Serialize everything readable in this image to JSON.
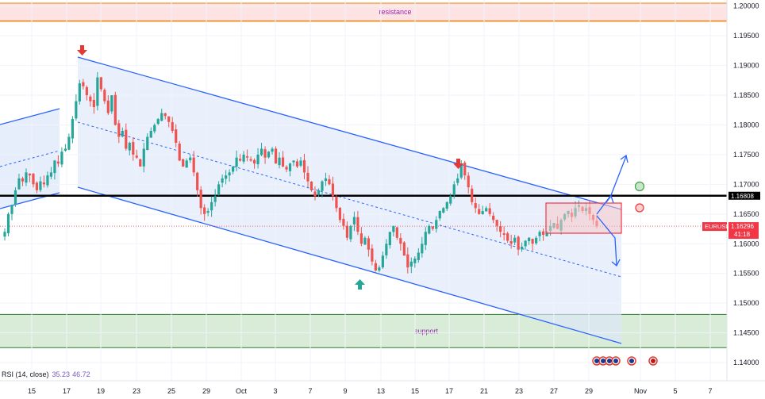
{
  "chart_data": {
    "type": "candlestick",
    "symbol": "EURUSD",
    "last_price": "1.16296",
    "countdown": "41:18",
    "key_level": "1.16808",
    "y_ticks": [
      "1.20000",
      "1.19500",
      "1.19000",
      "1.18500",
      "1.18000",
      "1.17500",
      "1.17000",
      "1.16500",
      "1.16000",
      "1.15500",
      "1.15000",
      "1.14500",
      "1.14000"
    ],
    "x_ticks": [
      "15",
      "17",
      "19",
      "23",
      "25",
      "29",
      "Oct",
      "3",
      "7",
      "9",
      "13",
      "15",
      "17",
      "21",
      "23",
      "27",
      "29",
      "Nov",
      "5",
      "7"
    ],
    "ylim": [
      1.1396,
      1.2005
    ],
    "zones": {
      "resistance": {
        "label": "resistance",
        "from": 1.1975,
        "to": 1.2005
      },
      "support": {
        "label": "support",
        "from": 1.1425,
        "to": 1.1481
      }
    },
    "indicator": {
      "label": "RSI (14, close)",
      "value1": "35.23",
      "value2": "46.72"
    },
    "close_path": [
      1.162,
      1.165,
      1.1665,
      1.169,
      1.171,
      1.1705,
      1.172,
      1.1715,
      1.17,
      1.169,
      1.1705,
      1.17,
      1.1715,
      1.172,
      1.174,
      1.1735,
      1.1755,
      1.176,
      1.178,
      1.181,
      1.184,
      1.187,
      1.1865,
      1.185,
      1.184,
      1.183,
      1.188,
      1.186,
      1.184,
      1.182,
      1.185,
      1.18,
      1.178,
      1.179,
      1.176,
      1.177,
      1.175,
      1.1745,
      1.173,
      1.176,
      1.178,
      1.179,
      1.18,
      1.181,
      1.182,
      1.1815,
      1.1805,
      1.179,
      1.177,
      1.174,
      1.173,
      1.174,
      1.1745,
      1.172,
      1.169,
      1.166,
      1.165,
      1.1655,
      1.167,
      1.168,
      1.17,
      1.171,
      1.1715,
      1.172,
      1.173,
      1.1745,
      1.174,
      1.175,
      1.1745,
      1.174,
      1.1735,
      1.175,
      1.176,
      1.1745,
      1.1755,
      1.176,
      1.1735,
      1.1745,
      1.173,
      1.1725,
      1.1735,
      1.174,
      1.173,
      1.174,
      1.172,
      1.1705,
      1.169,
      1.168,
      1.169,
      1.1705,
      1.171,
      1.17,
      1.168,
      1.166,
      1.164,
      1.163,
      1.161,
      1.163,
      1.1645,
      1.162,
      1.16,
      1.161,
      1.159,
      1.157,
      1.1555,
      1.156,
      1.158,
      1.16,
      1.162,
      1.163,
      1.161,
      1.16,
      1.158,
      1.156,
      1.157,
      1.1575,
      1.1585,
      1.16,
      1.162,
      1.163,
      1.1625,
      1.164,
      1.1655,
      1.166,
      1.167,
      1.168,
      1.17,
      1.171,
      1.1735,
      1.1715,
      1.1695,
      1.167,
      1.166,
      1.165,
      1.1655,
      1.166,
      1.165,
      1.164,
      1.163,
      1.162,
      1.1615,
      1.1605,
      1.16,
      1.161,
      1.159,
      1.1595,
      1.1605,
      1.161,
      1.16,
      1.161,
      1.162,
      1.1615,
      1.162,
      1.163,
      1.1635,
      1.1625,
      1.164,
      1.165,
      1.1655,
      1.1645,
      1.166,
      1.1665,
      1.1655,
      1.166,
      1.165,
      1.164,
      1.163
    ]
  }
}
